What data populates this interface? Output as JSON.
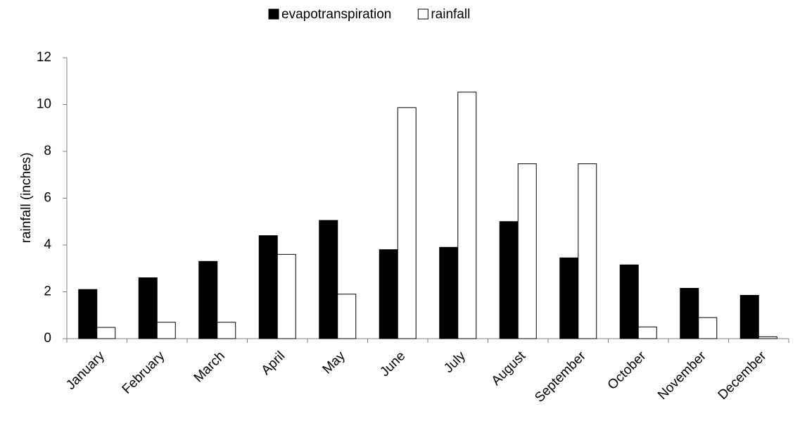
{
  "chart_data": {
    "type": "bar",
    "y_label": "rainfall (inches)",
    "categories": [
      "January",
      "February",
      "March",
      "April",
      "May",
      "June",
      "July",
      "August",
      "September",
      "October",
      "November",
      "December"
    ],
    "series": [
      {
        "name": "evapotranspiration",
        "color": "#000000",
        "values": [
          2.1,
          2.6,
          3.3,
          4.4,
          5.05,
          3.8,
          3.9,
          5.0,
          3.45,
          3.15,
          2.15,
          1.85
        ]
      },
      {
        "name": "rainfall",
        "color": "#ffffff",
        "values": [
          0.48,
          0.7,
          0.7,
          3.6,
          1.9,
          9.87,
          10.53,
          7.47,
          7.47,
          0.5,
          0.9,
          0.08
        ]
      }
    ],
    "ylim": [
      0,
      12
    ],
    "yticks": [
      0,
      2,
      4,
      6,
      8,
      10,
      12
    ],
    "grid": false,
    "legend": "top"
  }
}
